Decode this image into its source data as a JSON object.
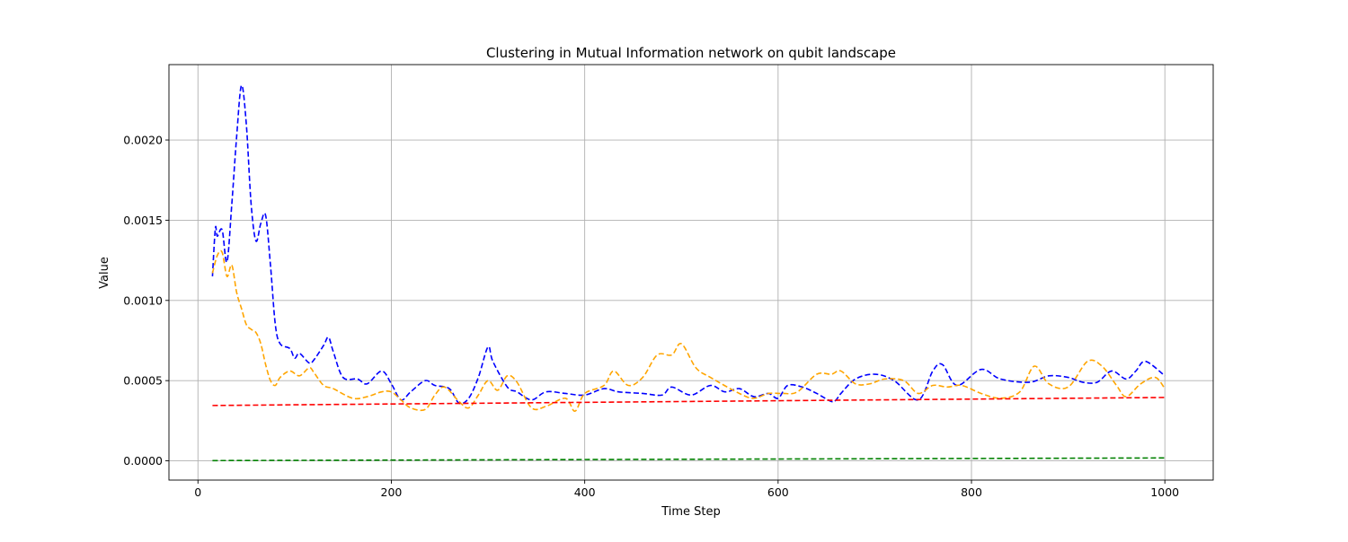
{
  "chart_data": {
    "type": "line",
    "title": "Clustering in Mutual Information network on qubit landscape",
    "xlabel": "Time Step",
    "ylabel": "Value",
    "xlim": [
      -30,
      1050
    ],
    "ylim": [
      -0.00012,
      0.00247
    ],
    "xticks": [
      0,
      200,
      400,
      600,
      800,
      1000
    ],
    "xtick_labels": [
      "0",
      "200",
      "400",
      "600",
      "800",
      "1000"
    ],
    "yticks": [
      0,
      0.0005,
      0.001,
      0.0015,
      0.002
    ],
    "ytick_labels": [
      "0.0000",
      "0.0005",
      "0.0010",
      "0.0015",
      "0.0020"
    ],
    "grid": true,
    "series": [
      {
        "color": "#0000ff",
        "style": "dashed",
        "x": [
          15,
          18,
          20,
          25,
          30,
          35,
          40,
          45,
          50,
          55,
          60,
          65,
          70,
          75,
          80,
          85,
          95,
          100,
          105,
          115,
          120,
          130,
          135,
          140,
          150,
          165,
          175,
          190,
          200,
          210,
          220,
          235,
          245,
          260,
          270,
          280,
          290,
          300,
          305,
          320,
          330,
          345,
          360,
          380,
          400,
          420,
          435,
          460,
          480,
          490,
          510,
          530,
          545,
          560,
          575,
          590,
          600,
          610,
          625,
          640,
          655,
          660,
          665,
          680,
          700,
          720,
          745,
          760,
          770,
          785,
          810,
          830,
          860,
          880,
          900,
          915,
          930,
          945,
          960,
          970,
          980,
          1000
        ],
        "y": [
          0.00115,
          0.00145,
          0.0014,
          0.00144,
          0.00124,
          0.0016,
          0.00202,
          0.00234,
          0.0021,
          0.0016,
          0.00137,
          0.00148,
          0.00153,
          0.00122,
          0.00085,
          0.00073,
          0.0007,
          0.00064,
          0.00067,
          0.00061,
          0.00063,
          0.00072,
          0.00077,
          0.00068,
          0.00052,
          0.00051,
          0.00048,
          0.00056,
          0.00048,
          0.00038,
          0.00043,
          0.0005,
          0.00047,
          0.00045,
          0.00036,
          0.00039,
          0.00052,
          0.00071,
          0.00062,
          0.00046,
          0.00043,
          0.00038,
          0.00043,
          0.00042,
          0.00041,
          0.00045,
          0.00043,
          0.00042,
          0.00041,
          0.00046,
          0.00041,
          0.00047,
          0.00043,
          0.00045,
          0.0004,
          0.00042,
          0.00039,
          0.00047,
          0.00046,
          0.00042,
          0.00037,
          0.00038,
          0.00042,
          0.00051,
          0.00054,
          0.0005,
          0.00038,
          0.00056,
          0.0006,
          0.00047,
          0.00057,
          0.00051,
          0.00049,
          0.00053,
          0.00052,
          0.00049,
          0.00049,
          0.00056,
          0.00051,
          0.00056,
          0.00062,
          0.00053
        ]
      },
      {
        "color": "#ffa500",
        "style": "dashed",
        "x": [
          15,
          20,
          25,
          30,
          35,
          40,
          45,
          50,
          55,
          60,
          65,
          70,
          75,
          80,
          85,
          95,
          105,
          115,
          120,
          130,
          140,
          160,
          175,
          190,
          200,
          210,
          220,
          235,
          245,
          255,
          270,
          280,
          290,
          300,
          310,
          320,
          330,
          345,
          360,
          380,
          390,
          400,
          420,
          430,
          445,
          460,
          475,
          490,
          500,
          515,
          530,
          560,
          575,
          590,
          605,
          620,
          640,
          655,
          665,
          680,
          695,
          710,
          730,
          745,
          760,
          775,
          790,
          810,
          830,
          850,
          865,
          880,
          900,
          920,
          935,
          950,
          960,
          975,
          990,
          1000
        ],
        "y": [
          0.00117,
          0.00128,
          0.0013,
          0.00115,
          0.00122,
          0.00105,
          0.00095,
          0.00085,
          0.00082,
          0.0008,
          0.00073,
          0.0006,
          0.0005,
          0.00047,
          0.00052,
          0.00056,
          0.00053,
          0.00058,
          0.00055,
          0.00047,
          0.00045,
          0.00039,
          0.0004,
          0.00043,
          0.00043,
          0.00038,
          0.00033,
          0.00032,
          0.00041,
          0.00046,
          0.00037,
          0.00033,
          0.00041,
          0.0005,
          0.00044,
          0.00053,
          0.00049,
          0.00033,
          0.00034,
          0.00039,
          0.00031,
          0.00042,
          0.00047,
          0.00056,
          0.00047,
          0.00052,
          0.00066,
          0.00066,
          0.00073,
          0.00058,
          0.00052,
          0.00042,
          0.00039,
          0.00042,
          0.00042,
          0.00043,
          0.00054,
          0.00054,
          0.00056,
          0.00048,
          0.00048,
          0.00051,
          0.0005,
          0.00042,
          0.00047,
          0.00046,
          0.00047,
          0.00042,
          0.00039,
          0.00043,
          0.00059,
          0.00048,
          0.00046,
          0.00062,
          0.00059,
          0.00047,
          0.0004,
          0.00048,
          0.00052,
          0.00045
        ]
      },
      {
        "color": "#ff0000",
        "style": "dashed",
        "x": [
          15,
          1000
        ],
        "y": [
          0.000345,
          0.000395
        ]
      },
      {
        "color": "#008000",
        "style": "dashed",
        "x": [
          15,
          1000
        ],
        "y": [
          1.5e-06,
          1.8e-05
        ]
      }
    ]
  }
}
